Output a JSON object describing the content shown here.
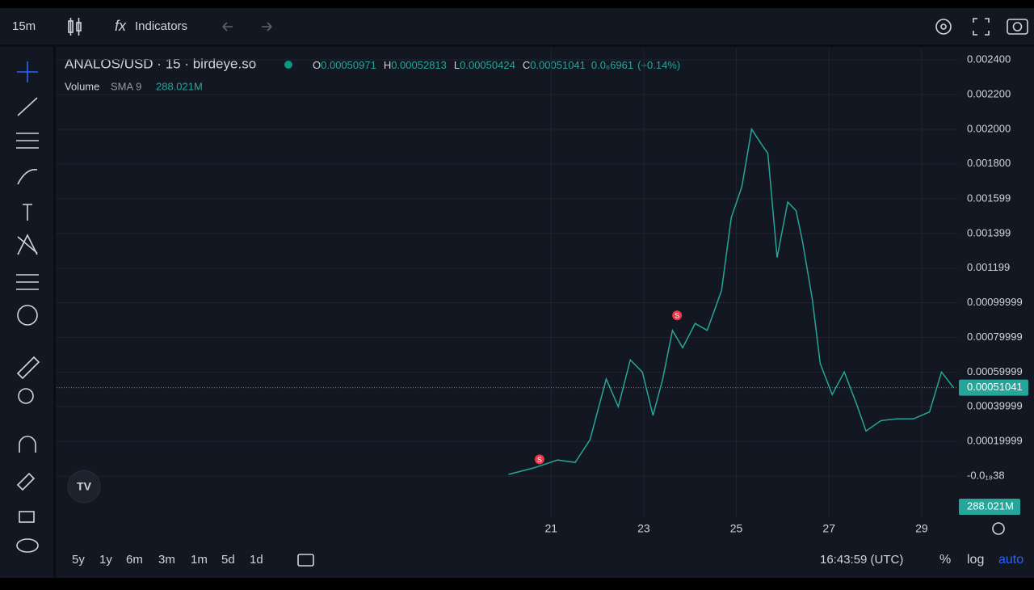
{
  "toolbar": {
    "interval": "15m",
    "indicators": "Indicators"
  },
  "legend": {
    "symbol": "ANALOS/USD · 15 · birdeye.so",
    "ohlc": [
      {
        "key": "O",
        "value": "0.00050971"
      },
      {
        "key": "H",
        "value": "0.00052813"
      },
      {
        "key": "L",
        "value": "0.00050424"
      },
      {
        "key": "C",
        "value": "0.00051041"
      }
    ],
    "change": "0.0₆6961",
    "change_pct": "(+0.14%)",
    "volume": "Volume",
    "sma": "SMA 9",
    "volume_value": "288.021M"
  },
  "chart_data": {
    "type": "line",
    "series": [
      {
        "name": "ANALOS/USD",
        "color": "#26a69a",
        "x": [
          20.08,
          20.62,
          21.14,
          21.52,
          21.84,
          22.19,
          22.45,
          22.71,
          22.97,
          23.2,
          23.41,
          23.62,
          23.84,
          24.11,
          24.37,
          24.68,
          24.89,
          25.12,
          25.33,
          25.5,
          25.68,
          25.88,
          26.11,
          26.29,
          26.43,
          26.64,
          26.81,
          27.07,
          27.33,
          27.59,
          27.8,
          28.12,
          28.47,
          28.82,
          29.17,
          29.43,
          29.69
        ],
        "values": [
          1e-05,
          4.7e-05,
          9.3e-05,
          7.9e-05,
          0.00021,
          0.00056,
          0.0004,
          0.00067,
          0.0006,
          0.00035,
          0.00056,
          0.00084,
          0.00074,
          0.00088,
          0.00084,
          0.00107,
          0.00149,
          0.00167,
          0.002,
          0.00193,
          0.00186,
          0.00126,
          0.00158,
          0.00153,
          0.00135,
          0.00102,
          0.00065,
          0.00047,
          0.0006,
          0.00042,
          0.00026,
          0.00032,
          0.00033,
          0.00033,
          0.00037,
          0.0006,
          0.00051
        ]
      }
    ],
    "xlim": [
      10.32,
      29.77
    ],
    "xticks": [
      21,
      23,
      25,
      27,
      29
    ],
    "ylim": [
      -0.000237,
      0.002465
    ],
    "yticks": [
      {
        "value": -3.8e-20,
        "label": "-0.0₁₈38"
      },
      {
        "value": 0.00019999,
        "label": "0.00019999"
      },
      {
        "value": 0.00039999,
        "label": "0.00039999"
      },
      {
        "value": 0.00059999,
        "label": "0.00059999"
      },
      {
        "value": 0.00079999,
        "label": "0.00079999"
      },
      {
        "value": 0.00099999,
        "label": "0.00099999"
      },
      {
        "value": 0.001199,
        "label": "0.001199"
      },
      {
        "value": 0.001399,
        "label": "0.001399"
      },
      {
        "value": 0.001599,
        "label": "0.001599"
      },
      {
        "value": 0.0018,
        "label": "0.001800"
      },
      {
        "value": 0.002,
        "label": "0.002000"
      },
      {
        "value": 0.0022,
        "label": "0.002200"
      },
      {
        "value": 0.0024,
        "label": "0.002400"
      }
    ],
    "grid": true,
    "last_price": {
      "value": 0.00051041,
      "label": "0.00051041"
    },
    "markers": [
      {
        "label": "S",
        "x": 20.75,
        "y": 5e-05
      },
      {
        "label": "S",
        "x": 23.72,
        "y": 0.00088
      }
    ],
    "volume_tag": "288.021M"
  },
  "bottom_bar": {
    "ranges": [
      "5y",
      "1y",
      "6m",
      "3m",
      "1m",
      "5d",
      "1d"
    ],
    "time": "16:43:59 (UTC)",
    "percent": "%",
    "log": "log",
    "auto": "auto"
  }
}
